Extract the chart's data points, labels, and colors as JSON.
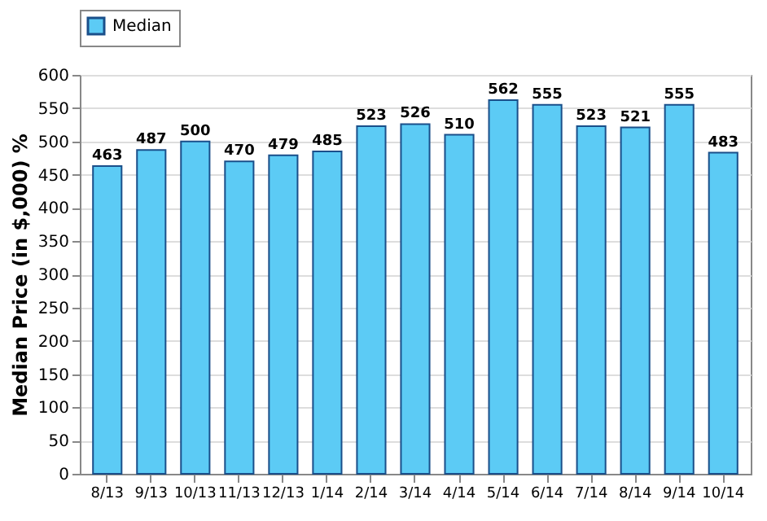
{
  "chart_data": {
    "type": "bar",
    "ylabel": "Median Price (in $,000) %",
    "categories": [
      "8/13",
      "9/13",
      "10/13",
      "11/13",
      "12/13",
      "1/14",
      "2/14",
      "3/14",
      "4/14",
      "5/14",
      "6/14",
      "7/14",
      "8/14",
      "9/14",
      "10/14"
    ],
    "series": [
      {
        "name": "Median",
        "color": "#5ccbf5",
        "values": [
          463,
          487,
          500,
          470,
          479,
          485,
          523,
          526,
          510,
          562,
          555,
          523,
          521,
          555,
          483
        ]
      }
    ],
    "ylim": [
      0,
      600
    ],
    "yticks": [
      0,
      50,
      100,
      150,
      200,
      250,
      300,
      350,
      400,
      450,
      500,
      550,
      600
    ],
    "grid": "y",
    "legend": "top",
    "data_labels": true
  }
}
